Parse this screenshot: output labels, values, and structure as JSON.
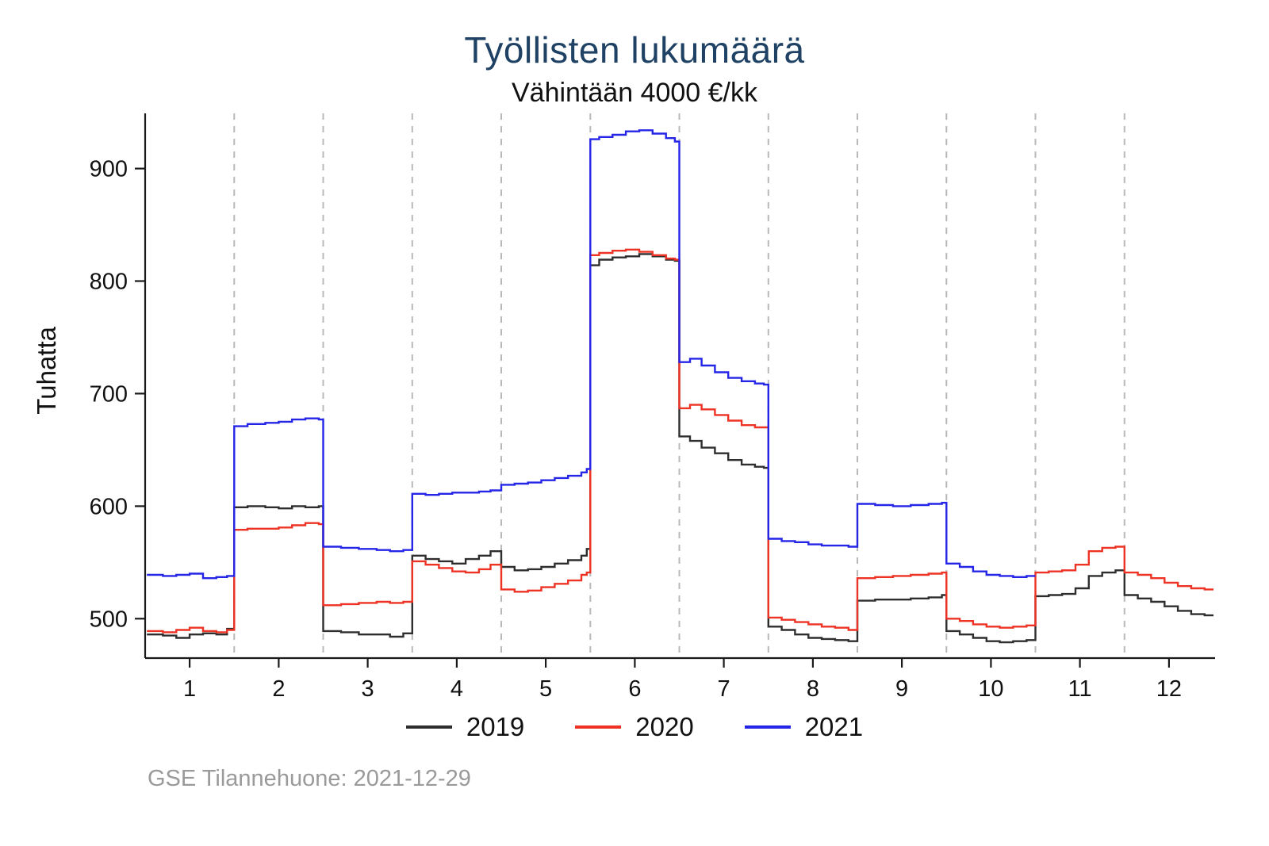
{
  "title": "Työllisten lukumäärä",
  "subtitle": "Vähintään 4000 €/kk",
  "footer": "GSE Tilannehuone: 2021-12-29",
  "colors": {
    "title": "#1e4164",
    "footer": "#9a9a9a",
    "gridline": "#b8b8b8",
    "axis": "#1a1a1a"
  },
  "chart_data": {
    "type": "line",
    "step": true,
    "title": "Työllisten lukumäärä",
    "subtitle": "Vähintään 4000 €/kk",
    "xlabel": "",
    "ylabel": "Tuhatta",
    "x_categories": [
      "1",
      "2",
      "3",
      "4",
      "5",
      "6",
      "7",
      "8",
      "9",
      "10",
      "11",
      "12"
    ],
    "yticks": [
      500,
      600,
      700,
      800,
      900
    ],
    "ylim": [
      465,
      949
    ],
    "xlim": [
      0.5,
      12.5
    ],
    "grid": "vertical-dashed",
    "gridlines_x": [
      1.5,
      2.5,
      3.5,
      4.5,
      5.5,
      6.5,
      7.5,
      8.5,
      9.5,
      10.5,
      11.5
    ],
    "legend_position": "bottom",
    "x_unit": "month",
    "y_unit": "thousands",
    "series": [
      {
        "name": "2019",
        "color": "#2e2e2e",
        "points": [
          [
            0.52,
            486
          ],
          [
            0.7,
            485
          ],
          [
            0.85,
            483
          ],
          [
            1.0,
            486
          ],
          [
            1.15,
            487
          ],
          [
            1.3,
            486
          ],
          [
            1.42,
            491
          ],
          [
            1.5,
            599
          ],
          [
            1.65,
            600
          ],
          [
            1.85,
            599
          ],
          [
            2.0,
            598
          ],
          [
            2.15,
            600
          ],
          [
            2.3,
            599
          ],
          [
            2.45,
            600
          ],
          [
            2.5,
            489
          ],
          [
            2.7,
            488
          ],
          [
            2.9,
            486
          ],
          [
            3.1,
            486
          ],
          [
            3.25,
            484
          ],
          [
            3.4,
            487
          ],
          [
            3.5,
            556
          ],
          [
            3.65,
            553
          ],
          [
            3.8,
            551
          ],
          [
            3.95,
            549
          ],
          [
            4.1,
            553
          ],
          [
            4.25,
            556
          ],
          [
            4.38,
            560
          ],
          [
            4.5,
            546
          ],
          [
            4.65,
            543
          ],
          [
            4.8,
            544
          ],
          [
            4.95,
            546
          ],
          [
            5.1,
            549
          ],
          [
            5.25,
            552
          ],
          [
            5.4,
            556
          ],
          [
            5.46,
            562
          ],
          [
            5.5,
            814
          ],
          [
            5.6,
            819
          ],
          [
            5.75,
            821
          ],
          [
            5.9,
            822
          ],
          [
            6.05,
            824
          ],
          [
            6.2,
            822
          ],
          [
            6.35,
            819
          ],
          [
            6.45,
            818
          ],
          [
            6.5,
            662
          ],
          [
            6.62,
            658
          ],
          [
            6.75,
            652
          ],
          [
            6.9,
            647
          ],
          [
            7.05,
            641
          ],
          [
            7.2,
            637
          ],
          [
            7.35,
            635
          ],
          [
            7.45,
            634
          ],
          [
            7.5,
            493
          ],
          [
            7.65,
            490
          ],
          [
            7.8,
            486
          ],
          [
            7.95,
            483
          ],
          [
            8.1,
            482
          ],
          [
            8.25,
            481
          ],
          [
            8.4,
            480
          ],
          [
            8.5,
            516
          ],
          [
            8.7,
            517
          ],
          [
            8.9,
            517
          ],
          [
            9.1,
            518
          ],
          [
            9.3,
            519
          ],
          [
            9.45,
            521
          ],
          [
            9.5,
            489
          ],
          [
            9.65,
            486
          ],
          [
            9.8,
            483
          ],
          [
            9.95,
            480
          ],
          [
            10.1,
            479
          ],
          [
            10.25,
            480
          ],
          [
            10.4,
            481
          ],
          [
            10.5,
            520
          ],
          [
            10.65,
            521
          ],
          [
            10.8,
            522
          ],
          [
            10.95,
            527
          ],
          [
            11.1,
            538
          ],
          [
            11.25,
            541
          ],
          [
            11.4,
            543
          ],
          [
            11.5,
            521
          ],
          [
            11.65,
            518
          ],
          [
            11.8,
            515
          ],
          [
            11.95,
            511
          ],
          [
            12.1,
            507
          ],
          [
            12.25,
            504
          ],
          [
            12.4,
            503
          ],
          [
            12.5,
            503
          ]
        ]
      },
      {
        "name": "2020",
        "color": "#ee3224",
        "points": [
          [
            0.52,
            489
          ],
          [
            0.7,
            488
          ],
          [
            0.85,
            490
          ],
          [
            1.0,
            492
          ],
          [
            1.15,
            489
          ],
          [
            1.3,
            488
          ],
          [
            1.42,
            490
          ],
          [
            1.5,
            579
          ],
          [
            1.65,
            580
          ],
          [
            1.85,
            580
          ],
          [
            2.0,
            581
          ],
          [
            2.15,
            583
          ],
          [
            2.3,
            585
          ],
          [
            2.45,
            584
          ],
          [
            2.5,
            512
          ],
          [
            2.7,
            513
          ],
          [
            2.9,
            514
          ],
          [
            3.1,
            515
          ],
          [
            3.25,
            514
          ],
          [
            3.4,
            515
          ],
          [
            3.5,
            551
          ],
          [
            3.65,
            548
          ],
          [
            3.8,
            545
          ],
          [
            3.95,
            542
          ],
          [
            4.1,
            541
          ],
          [
            4.25,
            544
          ],
          [
            4.38,
            548
          ],
          [
            4.5,
            526
          ],
          [
            4.65,
            524
          ],
          [
            4.8,
            525
          ],
          [
            4.95,
            528
          ],
          [
            5.1,
            531
          ],
          [
            5.25,
            534
          ],
          [
            5.4,
            539
          ],
          [
            5.46,
            541
          ],
          [
            5.5,
            823
          ],
          [
            5.6,
            825
          ],
          [
            5.75,
            827
          ],
          [
            5.9,
            828
          ],
          [
            6.05,
            826
          ],
          [
            6.2,
            823
          ],
          [
            6.35,
            820
          ],
          [
            6.45,
            819
          ],
          [
            6.5,
            687
          ],
          [
            6.62,
            690
          ],
          [
            6.75,
            686
          ],
          [
            6.9,
            681
          ],
          [
            7.05,
            676
          ],
          [
            7.2,
            672
          ],
          [
            7.35,
            670
          ],
          [
            7.45,
            670
          ],
          [
            7.5,
            501
          ],
          [
            7.65,
            499
          ],
          [
            7.8,
            497
          ],
          [
            7.95,
            495
          ],
          [
            8.1,
            493
          ],
          [
            8.25,
            492
          ],
          [
            8.4,
            490
          ],
          [
            8.5,
            536
          ],
          [
            8.7,
            537
          ],
          [
            8.9,
            538
          ],
          [
            9.1,
            539
          ],
          [
            9.3,
            540
          ],
          [
            9.45,
            541
          ],
          [
            9.5,
            500
          ],
          [
            9.65,
            498
          ],
          [
            9.8,
            495
          ],
          [
            9.95,
            493
          ],
          [
            10.1,
            492
          ],
          [
            10.25,
            493
          ],
          [
            10.4,
            494
          ],
          [
            10.5,
            541
          ],
          [
            10.65,
            542
          ],
          [
            10.8,
            543
          ],
          [
            10.95,
            548
          ],
          [
            11.1,
            560
          ],
          [
            11.25,
            563
          ],
          [
            11.4,
            564
          ],
          [
            11.5,
            541
          ],
          [
            11.65,
            539
          ],
          [
            11.8,
            536
          ],
          [
            11.95,
            532
          ],
          [
            12.1,
            529
          ],
          [
            12.25,
            527
          ],
          [
            12.4,
            526
          ],
          [
            12.5,
            526
          ]
        ]
      },
      {
        "name": "2021",
        "color": "#2525e8",
        "points": [
          [
            0.52,
            539
          ],
          [
            0.7,
            538
          ],
          [
            0.85,
            539
          ],
          [
            1.0,
            540
          ],
          [
            1.15,
            536
          ],
          [
            1.3,
            537
          ],
          [
            1.42,
            538
          ],
          [
            1.5,
            671
          ],
          [
            1.65,
            673
          ],
          [
            1.85,
            674
          ],
          [
            2.0,
            675
          ],
          [
            2.15,
            677
          ],
          [
            2.3,
            678
          ],
          [
            2.45,
            677
          ],
          [
            2.5,
            564
          ],
          [
            2.7,
            563
          ],
          [
            2.9,
            562
          ],
          [
            3.1,
            561
          ],
          [
            3.25,
            560
          ],
          [
            3.4,
            561
          ],
          [
            3.5,
            611
          ],
          [
            3.65,
            610
          ],
          [
            3.8,
            611
          ],
          [
            3.95,
            612
          ],
          [
            4.1,
            612
          ],
          [
            4.25,
            613
          ],
          [
            4.38,
            614
          ],
          [
            4.5,
            619
          ],
          [
            4.65,
            620
          ],
          [
            4.8,
            621
          ],
          [
            4.95,
            623
          ],
          [
            5.1,
            625
          ],
          [
            5.25,
            627
          ],
          [
            5.4,
            630
          ],
          [
            5.46,
            633
          ],
          [
            5.5,
            926
          ],
          [
            5.6,
            928
          ],
          [
            5.75,
            930
          ],
          [
            5.9,
            933
          ],
          [
            6.05,
            934
          ],
          [
            6.2,
            931
          ],
          [
            6.35,
            927
          ],
          [
            6.45,
            924
          ],
          [
            6.5,
            728
          ],
          [
            6.62,
            731
          ],
          [
            6.75,
            725
          ],
          [
            6.9,
            719
          ],
          [
            7.05,
            714
          ],
          [
            7.2,
            711
          ],
          [
            7.35,
            709
          ],
          [
            7.45,
            708
          ],
          [
            7.5,
            571
          ],
          [
            7.65,
            569
          ],
          [
            7.8,
            568
          ],
          [
            7.95,
            566
          ],
          [
            8.1,
            565
          ],
          [
            8.25,
            565
          ],
          [
            8.4,
            564
          ],
          [
            8.5,
            602
          ],
          [
            8.7,
            601
          ],
          [
            8.9,
            600
          ],
          [
            9.1,
            601
          ],
          [
            9.3,
            602
          ],
          [
            9.45,
            603
          ],
          [
            9.5,
            549
          ],
          [
            9.65,
            546
          ],
          [
            9.8,
            542
          ],
          [
            9.95,
            539
          ],
          [
            10.1,
            538
          ],
          [
            10.25,
            537
          ],
          [
            10.4,
            538
          ],
          [
            10.5,
            538
          ]
        ]
      }
    ]
  }
}
